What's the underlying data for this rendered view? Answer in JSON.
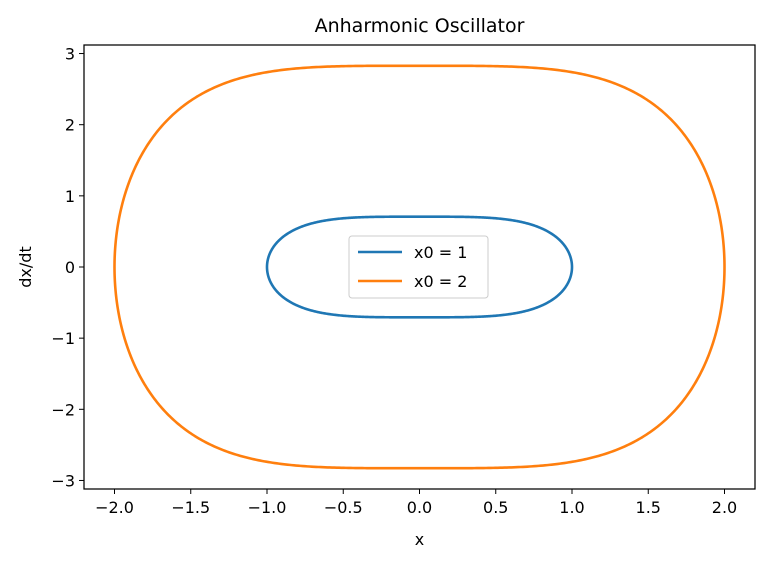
{
  "chart_data": {
    "type": "line",
    "title": "Anharmonic Oscillator",
    "xlabel": "x",
    "ylabel": "dx/dt",
    "xlim": [
      -2.2,
      2.2
    ],
    "ylim": [
      -3.12,
      3.12
    ],
    "xticks": [
      -2.0,
      -1.5,
      -1.0,
      -0.5,
      0.0,
      0.5,
      1.0,
      1.5,
      2.0
    ],
    "xtick_labels": [
      "−2.0",
      "−1.5",
      "−1.0",
      "−0.5",
      "0.0",
      "0.5",
      "1.0",
      "1.5",
      "2.0"
    ],
    "yticks": [
      -3,
      -2,
      -1,
      0,
      1,
      2,
      3
    ],
    "ytick_labels": [
      "−3",
      "−2",
      "−1",
      "0",
      "1",
      "2",
      "3"
    ],
    "grid": false,
    "legend_position": "center",
    "series": [
      {
        "name": "x0 = 1",
        "color": "#1f77b4",
        "curve": "closed orbit",
        "x0": 1.0,
        "vmax": 0.707
      },
      {
        "name": "x0 = 2",
        "color": "#ff7f0e",
        "curve": "closed orbit",
        "x0": 2.0,
        "vmax": 2.828
      }
    ]
  }
}
